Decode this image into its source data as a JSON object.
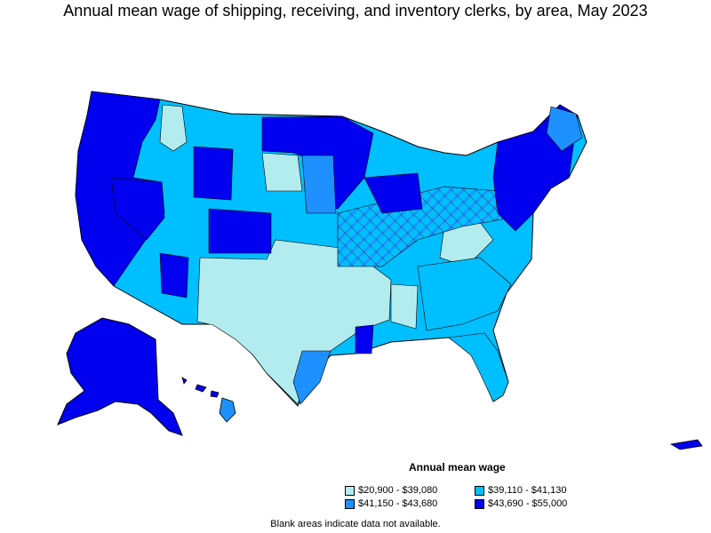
{
  "title": "Annual mean wage of shipping, receiving, and inventory clerks, by area, May 2023",
  "legend": {
    "title": "Annual mean wage",
    "items": [
      {
        "label": "$20,900 - $39,080",
        "color": "#b3ecef"
      },
      {
        "label": "$39,110 - $41,130",
        "color": "#00bfff"
      },
      {
        "label": "$41,150 - $43,680",
        "color": "#1e90ff"
      },
      {
        "label": "$43,690 - $55,000",
        "color": "#0000ee"
      }
    ]
  },
  "footnote": "Blank areas indicate data not available."
}
